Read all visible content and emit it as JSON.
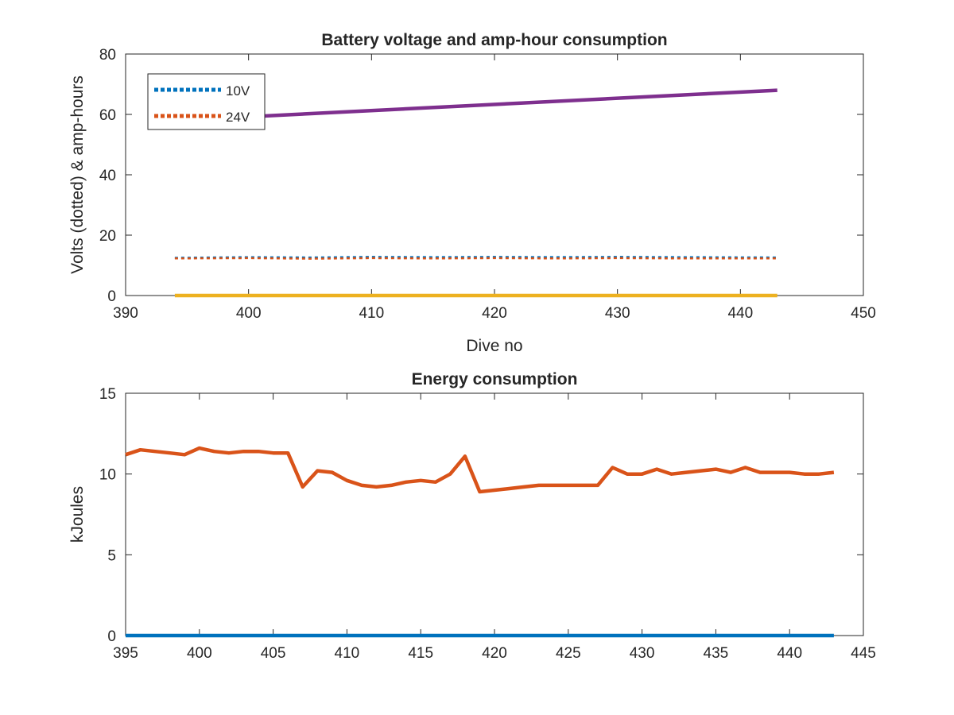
{
  "chart_data": [
    {
      "type": "line",
      "title": "Battery voltage and amp-hour consumption",
      "xlabel": "Dive no",
      "ylabel": "Volts (dotted) & amp-hours",
      "xlim": [
        390,
        450
      ],
      "ylim": [
        0,
        80
      ],
      "xticks": [
        390,
        400,
        410,
        420,
        430,
        440,
        450
      ],
      "yticks": [
        0,
        20,
        40,
        60,
        80
      ],
      "grid": false,
      "legend_position": "top-left",
      "series": [
        {
          "name": "10V",
          "style": "dotted",
          "color": "#0072BD",
          "x": [
            394,
            400,
            405,
            410,
            415,
            420,
            425,
            430,
            435,
            443
          ],
          "y": [
            12.5,
            12.7,
            12.6,
            12.8,
            12.7,
            12.8,
            12.7,
            12.8,
            12.7,
            12.6
          ]
        },
        {
          "name": "24V",
          "style": "dotted",
          "color": "#D95319",
          "x": [
            394,
            400,
            405,
            410,
            415,
            420,
            425,
            430,
            435,
            443
          ],
          "y": [
            12.3,
            12.4,
            12.2,
            12.4,
            12.3,
            12.4,
            12.3,
            12.4,
            12.3,
            12.3
          ]
        },
        {
          "style": "solid",
          "color": "#EDB120",
          "x": [
            394,
            443
          ],
          "y": [
            0,
            0
          ]
        },
        {
          "style": "solid",
          "color": "#7E2F8E",
          "x": [
            394,
            443
          ],
          "y": [
            58,
            68
          ]
        }
      ]
    },
    {
      "type": "line",
      "title": "Energy consumption",
      "xlabel": "",
      "ylabel": "kJoules",
      "xlim": [
        395,
        445
      ],
      "ylim": [
        0,
        15
      ],
      "xticks": [
        395,
        400,
        405,
        410,
        415,
        420,
        425,
        430,
        435,
        440,
        445
      ],
      "yticks": [
        0,
        5,
        10,
        15
      ],
      "grid": false,
      "series": [
        {
          "style": "solid",
          "color": "#0072BD",
          "x": [
            395,
            443
          ],
          "y": [
            0,
            0
          ]
        },
        {
          "style": "solid",
          "color": "#D95319",
          "x": [
            395,
            396,
            397,
            398,
            399,
            400,
            401,
            402,
            403,
            404,
            405,
            406,
            407,
            408,
            409,
            410,
            411,
            412,
            413,
            414,
            415,
            416,
            417,
            418,
            419,
            420,
            421,
            422,
            423,
            424,
            425,
            426,
            427,
            428,
            429,
            430,
            431,
            432,
            433,
            434,
            435,
            436,
            437,
            438,
            439,
            440,
            441,
            442,
            443
          ],
          "y": [
            11.2,
            11.5,
            11.4,
            11.3,
            11.2,
            11.6,
            11.4,
            11.3,
            11.4,
            11.4,
            11.3,
            11.3,
            9.2,
            10.2,
            10.1,
            9.6,
            9.3,
            9.2,
            9.3,
            9.5,
            9.6,
            9.5,
            10.0,
            11.1,
            8.9,
            9.0,
            9.1,
            9.2,
            9.3,
            9.3,
            9.3,
            9.3,
            9.3,
            10.4,
            10.0,
            10.0,
            10.3,
            10.0,
            10.1,
            10.2,
            10.3,
            10.1,
            10.4,
            10.1,
            10.1,
            10.1,
            10.0,
            10.0,
            10.1
          ]
        }
      ]
    }
  ]
}
